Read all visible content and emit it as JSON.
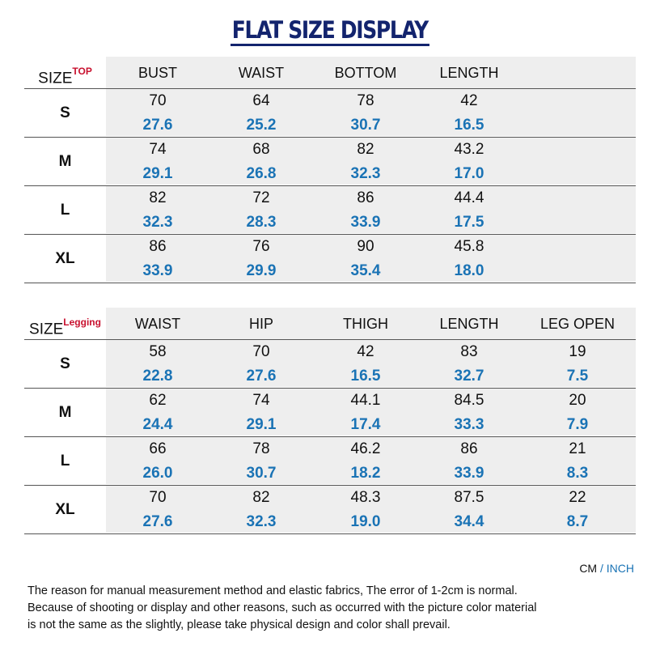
{
  "title": "FLAT SIZE DISPLAY",
  "colors": {
    "title": "#13246e",
    "inch": "#1a73b5",
    "superscript": "#c8102e",
    "header_bg": "#eeeeee"
  },
  "top_table": {
    "size_label": "SIZE",
    "superscript": "TOP",
    "columns": [
      "BUST",
      "WAIST",
      "BOTTOM",
      "LENGTH"
    ],
    "rows": [
      {
        "size": "S",
        "cm": [
          "70",
          "64",
          "78",
          "42"
        ],
        "inch": [
          "27.6",
          "25.2",
          "30.7",
          "16.5"
        ]
      },
      {
        "size": "M",
        "cm": [
          "74",
          "68",
          "82",
          "43.2"
        ],
        "inch": [
          "29.1",
          "26.8",
          "32.3",
          "17.0"
        ]
      },
      {
        "size": "L",
        "cm": [
          "82",
          "72",
          "86",
          "44.4"
        ],
        "inch": [
          "32.3",
          "28.3",
          "33.9",
          "17.5"
        ]
      },
      {
        "size": "XL",
        "cm": [
          "86",
          "76",
          "90",
          "45.8"
        ],
        "inch": [
          "33.9",
          "29.9",
          "35.4",
          "18.0"
        ]
      }
    ]
  },
  "legging_table": {
    "size_label": "SIZE",
    "superscript": "Legging",
    "columns": [
      "WAIST",
      "HIP",
      "THIGH",
      "LENGTH",
      "LEG OPEN"
    ],
    "rows": [
      {
        "size": "S",
        "cm": [
          "58",
          "70",
          "42",
          "83",
          "19"
        ],
        "inch": [
          "22.8",
          "27.6",
          "16.5",
          "32.7",
          "7.5"
        ]
      },
      {
        "size": "M",
        "cm": [
          "62",
          "74",
          "44.1",
          "84.5",
          "20"
        ],
        "inch": [
          "24.4",
          "29.1",
          "17.4",
          "33.3",
          "7.9"
        ]
      },
      {
        "size": "L",
        "cm": [
          "66",
          "78",
          "46.2",
          "86",
          "21"
        ],
        "inch": [
          "26.0",
          "30.7",
          "18.2",
          "33.9",
          "8.3"
        ]
      },
      {
        "size": "XL",
        "cm": [
          "70",
          "82",
          "48.3",
          "87.5",
          "22"
        ],
        "inch": [
          "27.6",
          "32.3",
          "19.0",
          "34.4",
          "8.7"
        ]
      }
    ]
  },
  "legend": {
    "cm": "CM",
    "slash": "/",
    "inch": "INCH"
  },
  "notes": [
    "The reason for manual measurement method and elastic fabrics, The error of 1-2cm is normal.",
    "Because of shooting or display and other reasons, such as occurred with the picture color material",
    "is not the same as the slightly, please take physical design and color shall prevail."
  ]
}
